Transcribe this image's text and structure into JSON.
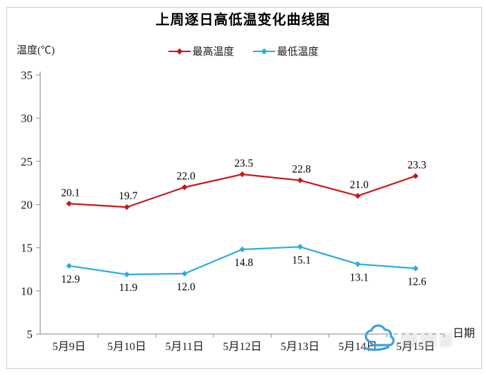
{
  "chart_data": {
    "type": "line",
    "title": "上周逐日高低温变化曲线图",
    "ylabel": "温度(℃)",
    "xlabel": "日期",
    "categories": [
      "5月9日",
      "5月10日",
      "5月11日",
      "5月12日",
      "5月13日",
      "5月14日",
      "5月15日"
    ],
    "series": [
      {
        "name": "最高温度",
        "color": "#cc1414",
        "label_position": "above",
        "values": [
          20.1,
          19.7,
          22.0,
          23.5,
          22.8,
          21.0,
          23.3
        ]
      },
      {
        "name": "最低温度",
        "color": "#29ace3",
        "label_position": "below",
        "values": [
          12.9,
          11.9,
          12.0,
          14.8,
          15.1,
          13.1,
          12.6
        ]
      }
    ],
    "ylim": [
      5,
      35
    ],
    "yticks": [
      35,
      30,
      25,
      20,
      15,
      10,
      5
    ],
    "grid": false,
    "legend_position": "top-center",
    "marker": "diamond",
    "axis_color": "#9b9b9b",
    "text_color": "#1a1a1a"
  },
  "watermark": {
    "icon": "cloud-logo",
    "color": "#3f9fd8"
  }
}
